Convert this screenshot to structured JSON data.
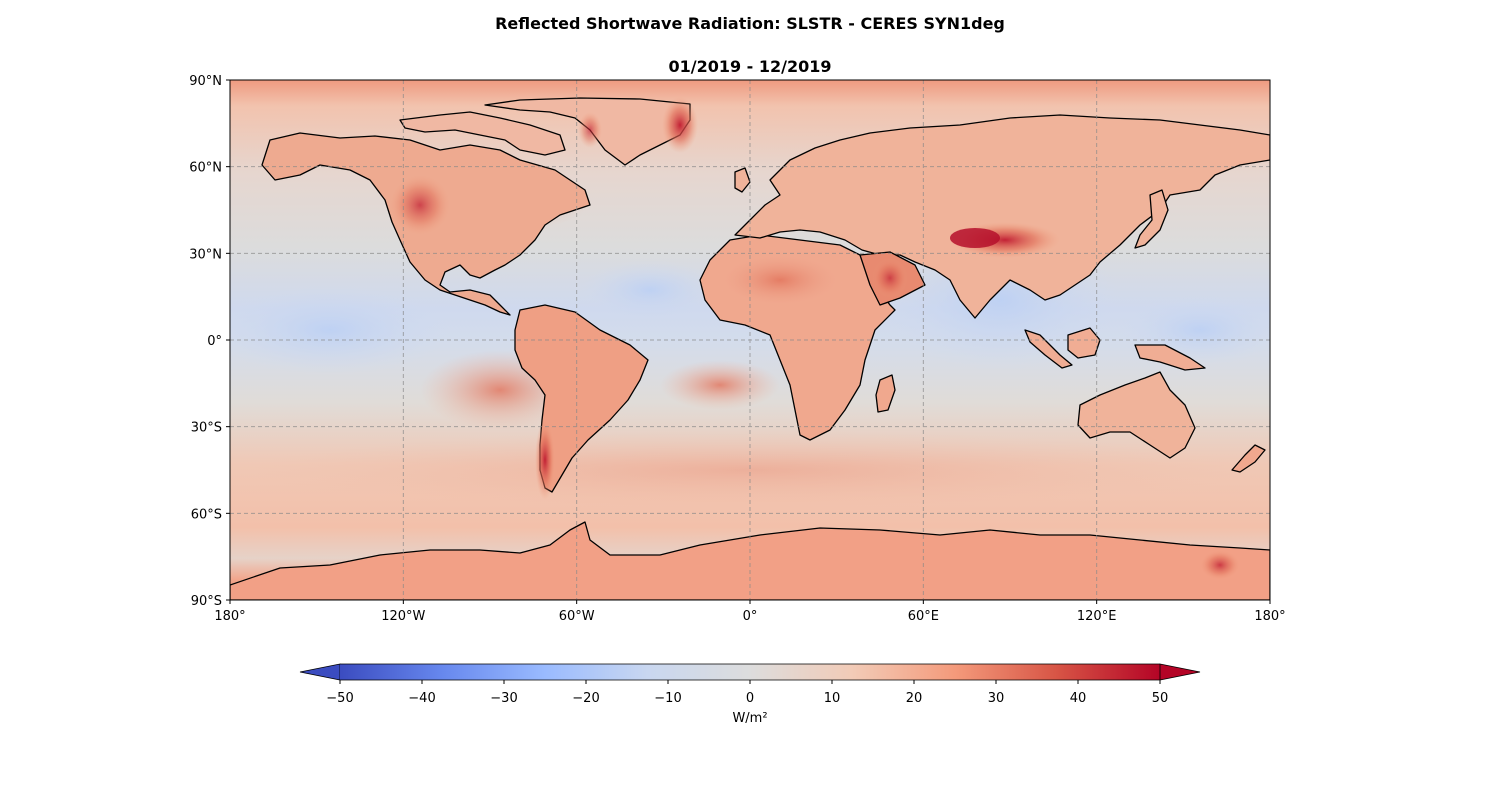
{
  "title": "Reflected Shortwave Radiation: SLSTR - CERES SYN1deg",
  "subtitle": "01/2019 - 12/2019",
  "map": {
    "projection": "PlateCarree",
    "lon_range": [
      -180,
      180
    ],
    "lat_range": [
      -90,
      90
    ],
    "gridlines": true,
    "coastlines": true,
    "lon_ticks": [
      {
        "value": -180,
        "label": "180°"
      },
      {
        "value": -120,
        "label": "120°W"
      },
      {
        "value": -60,
        "label": "60°W"
      },
      {
        "value": 0,
        "label": "0°"
      },
      {
        "value": 60,
        "label": "60°E"
      },
      {
        "value": 120,
        "label": "120°E"
      },
      {
        "value": 180,
        "label": "180°"
      }
    ],
    "lat_ticks": [
      {
        "value": 90,
        "label": "90°N"
      },
      {
        "value": 60,
        "label": "60°N"
      },
      {
        "value": 30,
        "label": "30°N"
      },
      {
        "value": 0,
        "label": "0°"
      },
      {
        "value": -30,
        "label": "30°S"
      },
      {
        "value": -60,
        "label": "60°S"
      },
      {
        "value": -90,
        "label": "90°S"
      }
    ],
    "colormap": "coolwarm",
    "features": [
      {
        "name": "tibetan-plateau",
        "lon": 88,
        "lat": 33,
        "value": 50
      },
      {
        "name": "greenland-east",
        "lon": -25,
        "lat": 75,
        "value": 45
      },
      {
        "name": "andes-south",
        "lon": -72,
        "lat": -45,
        "value": 40
      },
      {
        "name": "peru-stratocumulus",
        "lon": -82,
        "lat": -20,
        "value": 30
      },
      {
        "name": "sahara",
        "lon": 10,
        "lat": 22,
        "value": 25
      },
      {
        "name": "rockies",
        "lon": -115,
        "lat": 45,
        "value": 30
      },
      {
        "name": "warm-pool",
        "lon": 100,
        "lat": 5,
        "value": -10
      },
      {
        "name": "tropical-pacific",
        "lon": -150,
        "lat": 0,
        "value": -8
      }
    ]
  },
  "colorbar": {
    "min": -50,
    "max": 50,
    "extend": "both",
    "ticks": [
      "−50",
      "−40",
      "−30",
      "−20",
      "−10",
      "0",
      "10",
      "20",
      "30",
      "40",
      "50"
    ],
    "tick_values": [
      -50,
      -40,
      -30,
      -20,
      -10,
      0,
      10,
      20,
      30,
      40,
      50
    ],
    "label": "W/m²",
    "colors": [
      "#3b4cc0",
      "#6788ee",
      "#9abbff",
      "#c9d7f0",
      "#dddddd",
      "#f2cbb7",
      "#f49a7b",
      "#d75445",
      "#b40426"
    ]
  }
}
